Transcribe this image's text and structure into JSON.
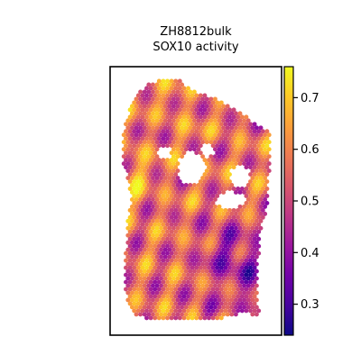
{
  "chart_data": {
    "type": "heatmap",
    "title_line1": "ZH8812bulk",
    "title_line2": "SOX10 activity",
    "xlabel": "",
    "ylabel": "",
    "colormap": "plasma",
    "color_range": [
      0.24,
      0.76
    ],
    "colorbar_ticks": [
      0.3,
      0.4,
      0.5,
      0.6,
      0.7
    ],
    "colorbar_tick_labels": [
      "0.3",
      "0.4",
      "0.5",
      "0.6",
      "0.7"
    ],
    "grid": false,
    "legend": "colorbar-right",
    "plasma_stops": [
      "#0d0887",
      "#46039f",
      "#7201a8",
      "#9c179e",
      "#bd3786",
      "#d8576b",
      "#ed7953",
      "#fb9f3a",
      "#fdca26",
      "#f0f921"
    ]
  }
}
